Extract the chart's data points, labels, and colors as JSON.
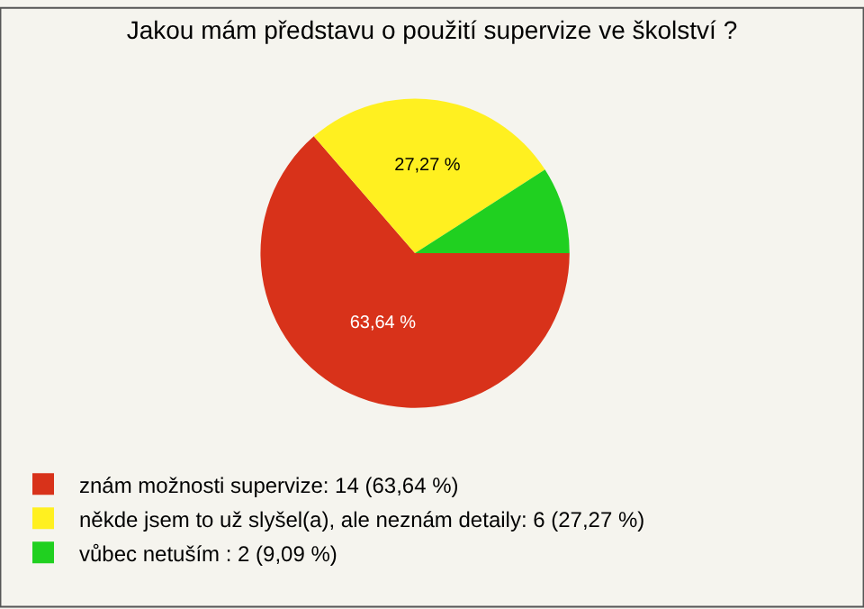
{
  "chart_data": {
    "type": "pie",
    "title": "Jakou mám představu o použití supervize ve školství ?",
    "categories": [
      "znám možnosti supervize: 14 (63,64 %)",
      "někde jsem to už slyšel(a), ale neznám detaily: 6 (27,27 %)",
      "vůbec netuším : 2 (9,09 %)"
    ],
    "values": [
      63.64,
      27.27,
      9.09
    ],
    "colors": [
      "#d8321a",
      "#fff020",
      "#20d020"
    ],
    "value_labels": [
      "63,64 %",
      "27,27 %",
      null
    ],
    "legend": "bottom left"
  }
}
